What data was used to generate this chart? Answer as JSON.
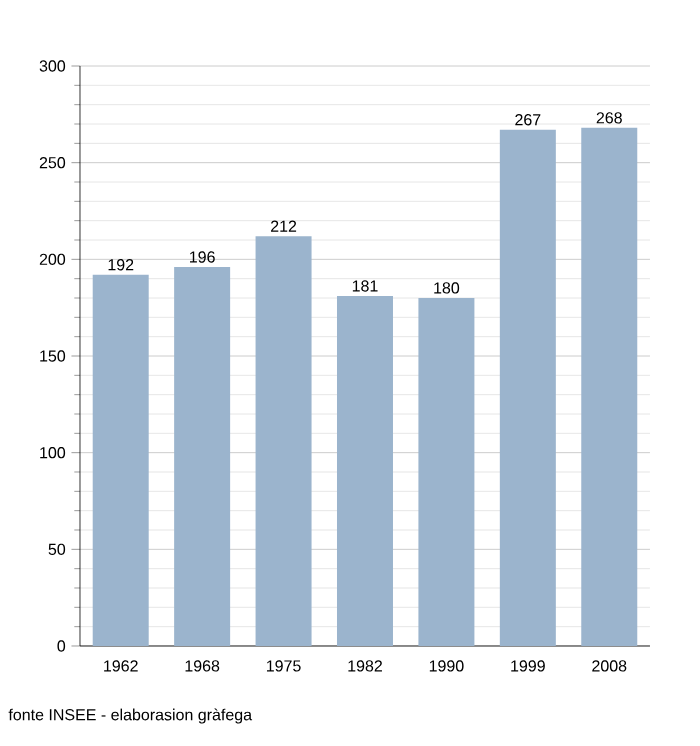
{
  "chart_data": {
    "type": "bar",
    "categories": [
      "1962",
      "1968",
      "1975",
      "1982",
      "1990",
      "1999",
      "2008"
    ],
    "values": [
      192,
      196,
      212,
      181,
      180,
      267,
      268
    ],
    "color": "#9bb4cd",
    "data_labels": true,
    "ylim": [
      0,
      300
    ],
    "yticks": [
      0,
      50,
      100,
      150,
      200,
      250,
      300
    ],
    "grid": "y",
    "annotations": [
      "fonte INSEE - elaborasion gràfega"
    ]
  }
}
